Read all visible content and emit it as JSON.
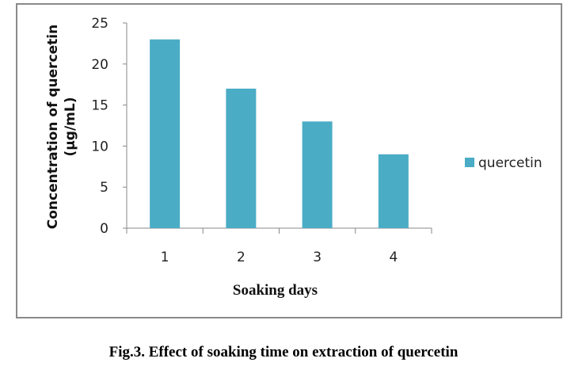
{
  "chart_data": {
    "type": "bar",
    "title": "",
    "caption": "Fig.3. Effect of soaking time on extraction of quercetin",
    "xlabel": "Soaking days",
    "ylabel_lines": [
      "Concentration of quercetin",
      "(µg/mL)"
    ],
    "categories": [
      "1",
      "2",
      "3",
      "4"
    ],
    "series": [
      {
        "name": "quercetin",
        "values": [
          23,
          17,
          13,
          9
        ],
        "color": "#4bacc6"
      }
    ],
    "ylim": [
      0,
      25
    ],
    "yticks": [
      0,
      5,
      10,
      15,
      20,
      25
    ],
    "grid": false,
    "legend_position": "right"
  }
}
